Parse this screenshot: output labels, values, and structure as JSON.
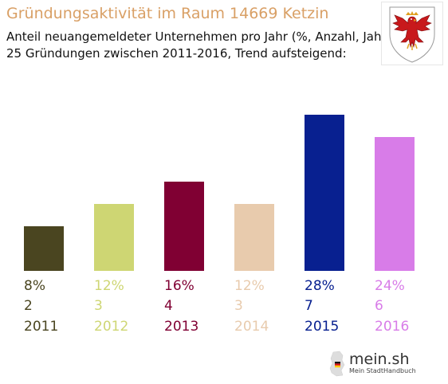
{
  "header": {
    "title": "Gründungsaktivität im Raum 14669 Ketzin",
    "subtitle_line1": "Anteil neuangemeldeter Unternehmen pro Jahr (%, Anzahl, Jahr)",
    "subtitle_line2": "25 Gründungen zwischen 2011-2016, Trend aufsteigend:"
  },
  "crest": {
    "icon": "brandenburg-eagle-crest-icon"
  },
  "logo": {
    "name": "mein.sh",
    "tagline": "Mein StadtHandbuch",
    "icon": "germany-map-flag-icon"
  },
  "chart_data": {
    "type": "bar",
    "categories": [
      "2011",
      "2012",
      "2013",
      "2014",
      "2015",
      "2016"
    ],
    "values": [
      8,
      12,
      16,
      12,
      28,
      24
    ],
    "counts": [
      2,
      3,
      4,
      3,
      7,
      6
    ],
    "percent_labels": [
      "8%",
      "12%",
      "16%",
      "12%",
      "28%",
      "24%"
    ],
    "count_labels": [
      "2",
      "3",
      "4",
      "3",
      "7",
      "6"
    ],
    "colors": [
      "#4a4520",
      "#ced673",
      "#800033",
      "#e8cbad",
      "#082090",
      "#d87ce8"
    ],
    "ylim": [
      0,
      28
    ],
    "grid": false,
    "legend": "none"
  }
}
